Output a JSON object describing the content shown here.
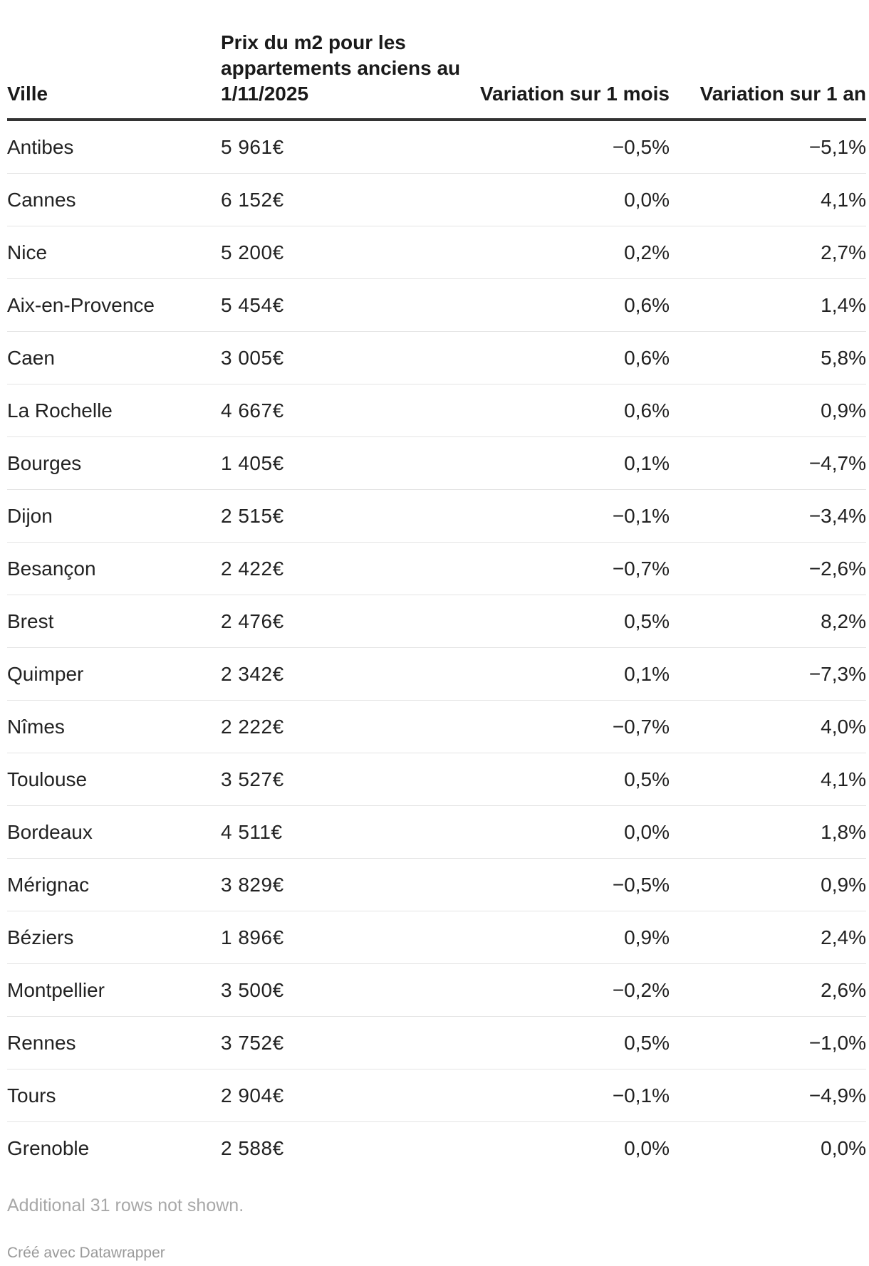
{
  "chart_data": {
    "type": "table",
    "columns": [
      "Ville",
      "Prix du m2 pour les appartements anciens au 1/11/2025",
      "Variation sur 1 mois",
      "Variation sur 1 an"
    ],
    "rows": [
      [
        "Antibes",
        "5 961€",
        "−0,5%",
        "−5,1%"
      ],
      [
        "Cannes",
        "6 152€",
        "0,0%",
        "4,1%"
      ],
      [
        "Nice",
        "5 200€",
        "0,2%",
        "2,7%"
      ],
      [
        "Aix-en-Provence",
        "5 454€",
        "0,6%",
        "1,4%"
      ],
      [
        "Caen",
        "3 005€",
        "0,6%",
        "5,8%"
      ],
      [
        "La Rochelle",
        "4 667€",
        "0,6%",
        "0,9%"
      ],
      [
        "Bourges",
        "1 405€",
        "0,1%",
        "−4,7%"
      ],
      [
        "Dijon",
        "2 515€",
        "−0,1%",
        "−3,4%"
      ],
      [
        "Besançon",
        "2 422€",
        "−0,7%",
        "−2,6%"
      ],
      [
        "Brest",
        "2 476€",
        "0,5%",
        "8,2%"
      ],
      [
        "Quimper",
        "2 342€",
        "0,1%",
        "−7,3%"
      ],
      [
        "Nîmes",
        "2 222€",
        "−0,7%",
        "4,0%"
      ],
      [
        "Toulouse",
        "3 527€",
        "0,5%",
        "4,1%"
      ],
      [
        "Bordeaux",
        "4 511€",
        "0,0%",
        "1,8%"
      ],
      [
        "Mérignac",
        "3 829€",
        "−0,5%",
        "0,9%"
      ],
      [
        "Béziers",
        "1 896€",
        "0,9%",
        "2,4%"
      ],
      [
        "Montpellier",
        "3 500€",
        "−0,2%",
        "2,6%"
      ],
      [
        "Rennes",
        "3 752€",
        "0,5%",
        "−1,0%"
      ],
      [
        "Tours",
        "2 904€",
        "−0,1%",
        "−4,9%"
      ],
      [
        "Grenoble",
        "2 588€",
        "0,0%",
        "0,0%"
      ]
    ],
    "note": "Additional 31 rows not shown.",
    "credit": "Créé avec Datawrapper"
  }
}
